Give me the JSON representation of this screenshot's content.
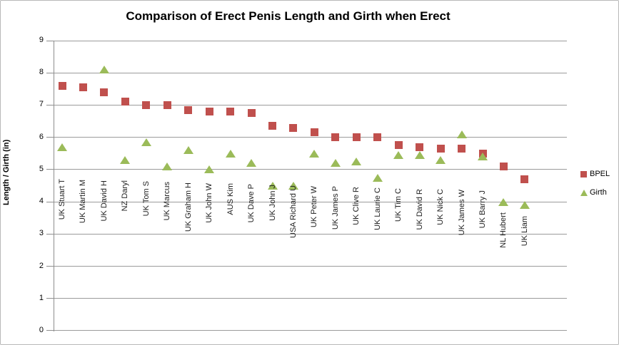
{
  "chart_data": {
    "type": "scatter",
    "title": "Comparison of Erect Penis Length and Girth when Erect",
    "xlabel": "",
    "ylabel": "Length / Girth (in)",
    "ylim": [
      0,
      9
    ],
    "ytick_step": 1,
    "grid": true,
    "legend_position": "right",
    "categories": [
      "UK Stuart T",
      "UK Martin M",
      "UK David H",
      "NZ Daryl",
      "UK Tom S",
      "UK Marcus",
      "UK Graham H",
      "UK John W",
      "AUS Kim",
      "UK Dave P",
      "UK John J",
      "USA Richard U",
      "UK Peter W",
      "UK James P",
      "UK Clive R",
      "UK Laurie C",
      "UK Tim C",
      "UK David R",
      "UK Nick C",
      "UK James W",
      "UK Barry J",
      "NL Hubert",
      "UK Liam"
    ],
    "series": [
      {
        "name": "BPEL",
        "marker": "square",
        "color": "#C0504D",
        "values": [
          7.6,
          7.55,
          7.4,
          7.1,
          7.0,
          7.0,
          6.85,
          6.8,
          6.8,
          6.75,
          6.35,
          6.3,
          6.15,
          6.0,
          6.0,
          6.0,
          5.75,
          5.7,
          5.65,
          5.65,
          5.5,
          5.1,
          4.7
        ]
      },
      {
        "name": "Girth",
        "marker": "triangle",
        "color": "#9BBB59",
        "values": [
          5.7,
          null,
          8.1,
          5.3,
          5.85,
          5.1,
          5.6,
          5.0,
          5.5,
          5.2,
          4.5,
          4.5,
          5.5,
          5.2,
          5.25,
          4.75,
          5.45,
          5.45,
          5.3,
          6.1,
          5.4,
          4.0,
          3.9
        ]
      }
    ]
  }
}
